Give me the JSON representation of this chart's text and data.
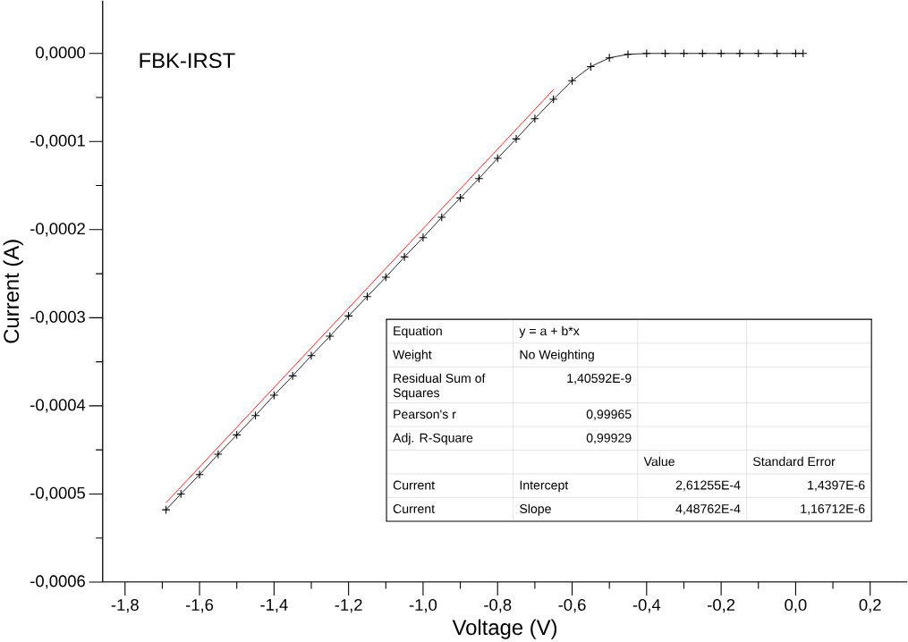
{
  "chart_data": {
    "type": "line",
    "xlabel": "Voltage (V)",
    "ylabel": "Current (A)",
    "xlim": [
      -1.86,
      0.3
    ],
    "ylim": [
      -0.0006,
      6e-05
    ],
    "xticks": [
      {
        "value": -1.8,
        "label": "-1,8"
      },
      {
        "value": -1.6,
        "label": "-1,6"
      },
      {
        "value": -1.4,
        "label": "-1,4"
      },
      {
        "value": -1.2,
        "label": "-1,2"
      },
      {
        "value": -1.0,
        "label": "-1,0"
      },
      {
        "value": -0.8,
        "label": "-0,8"
      },
      {
        "value": -0.6,
        "label": "-0,6"
      },
      {
        "value": -0.4,
        "label": "-0,4"
      },
      {
        "value": -0.2,
        "label": "-0,2"
      },
      {
        "value": 0.0,
        "label": "0,0"
      },
      {
        "value": 0.2,
        "label": "0,2"
      }
    ],
    "yticks": [
      {
        "value": -0.0006,
        "label": "-0,0006"
      },
      {
        "value": -0.0005,
        "label": "-0,0005"
      },
      {
        "value": -0.0004,
        "label": "-0,0004"
      },
      {
        "value": -0.0003,
        "label": "-0,0003"
      },
      {
        "value": -0.0002,
        "label": "-0,0002"
      },
      {
        "value": -0.0001,
        "label": "-0,0001"
      },
      {
        "value": 0.0,
        "label": "0,0000"
      }
    ],
    "series": [
      {
        "color": "#000000",
        "marker": "cross",
        "x": [
          -1.69,
          -1.65,
          -1.6,
          -1.55,
          -1.5,
          -1.45,
          -1.4,
          -1.35,
          -1.3,
          -1.25,
          -1.2,
          -1.15,
          -1.1,
          -1.05,
          -1.0,
          -0.95,
          -0.9,
          -0.85,
          -0.8,
          -0.75,
          -0.7,
          -0.65,
          -0.6,
          -0.55,
          -0.5,
          -0.45,
          -0.4,
          -0.35,
          -0.3,
          -0.25,
          -0.2,
          -0.15,
          -0.1,
          -0.05,
          0.0,
          0.02
        ],
        "values": [
          -0.000518,
          -0.0005,
          -0.000478,
          -0.000455,
          -0.000433,
          -0.000411,
          -0.000388,
          -0.000366,
          -0.000343,
          -0.000321,
          -0.000298,
          -0.000276,
          -0.000254,
          -0.000231,
          -0.000209,
          -0.000186,
          -0.000164,
          -0.000142,
          -0.000119,
          -9.7e-05,
          -7.4e-05,
          -5.2e-05,
          -3.1e-05,
          -1.5e-05,
          -5e-06,
          -1e-06,
          0,
          0,
          0,
          0,
          0,
          0,
          0,
          0,
          0,
          0
        ]
      },
      {
        "color": "#ff0000",
        "marker": "none",
        "x": [
          -1.69,
          -0.65
        ],
        "values": [
          -0.00051,
          -4.1e-05
        ]
      }
    ],
    "annotations": [
      "FBK-IRST",
      "Equation",
      "y = a + b*x",
      "Weight",
      "No Weighting",
      "Residual Sum of Squares",
      "1,40592E-9",
      "Pearson's r",
      "0,99965",
      "Adj. R-Square",
      "0,99929",
      "Value",
      "Standard Error",
      "Current",
      "Intercept",
      "2,61255E-4",
      "1,4397E-6",
      "Current",
      "Slope",
      "4,48762E-4",
      "1,16712E-6"
    ]
  }
}
